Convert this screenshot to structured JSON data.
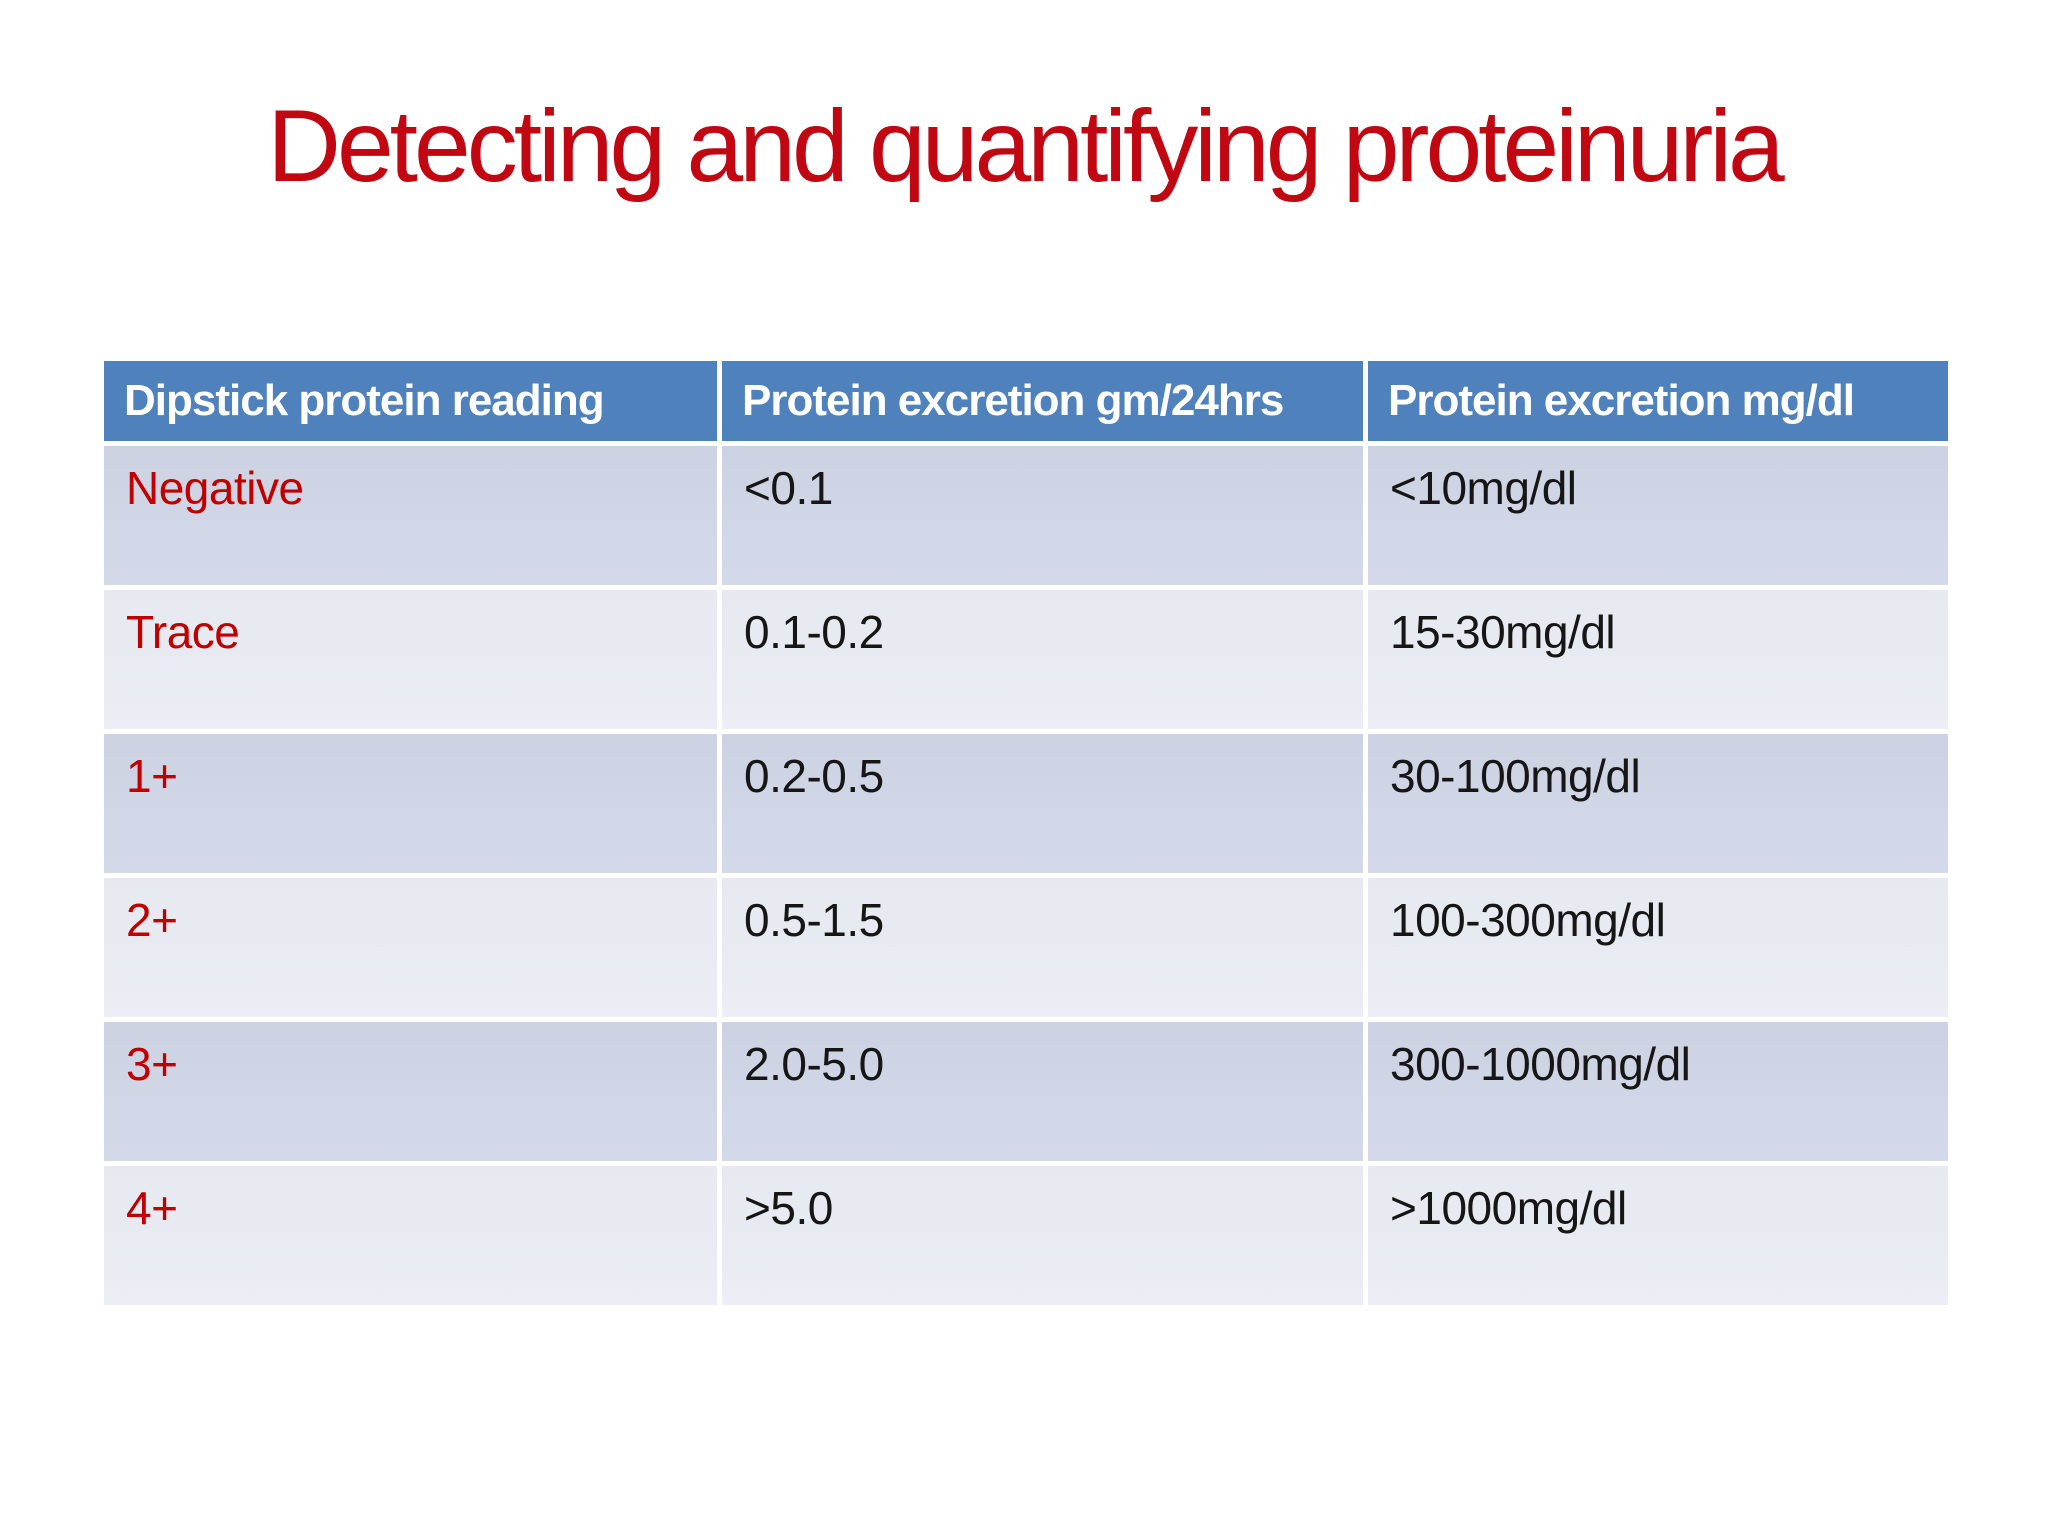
{
  "slide": {
    "title": "Detecting and quantifying proteinuria"
  },
  "colors": {
    "title_red": "#c00712",
    "reading_red": "#c00000",
    "header_blue": "#4f81bd",
    "band_dark": "#d1d6e6",
    "band_light": "#e9ebf3",
    "header_text": "#ffffff",
    "value_text": "#161616",
    "background": "#ffffff"
  },
  "table": {
    "headers": [
      "Dipstick protein reading",
      "Protein excretion gm/24hrs",
      "Protein excretion mg/dl"
    ],
    "rows": [
      {
        "reading": "Negative",
        "gm24": "<0.1",
        "mgdl": "<10mg/dl"
      },
      {
        "reading": "Trace",
        "gm24": "0.1-0.2",
        "mgdl": "15-30mg/dl"
      },
      {
        "reading": "1+",
        "gm24": "0.2-0.5",
        "mgdl": "30-100mg/dl"
      },
      {
        "reading": "2+",
        "gm24": "0.5-1.5",
        "mgdl": "100-300mg/dl"
      },
      {
        "reading": "3+",
        "gm24": "2.0-5.0",
        "mgdl": "300-1000mg/dl"
      },
      {
        "reading": "4+",
        "gm24": ">5.0",
        "mgdl": ">1000mg/dl"
      }
    ]
  }
}
